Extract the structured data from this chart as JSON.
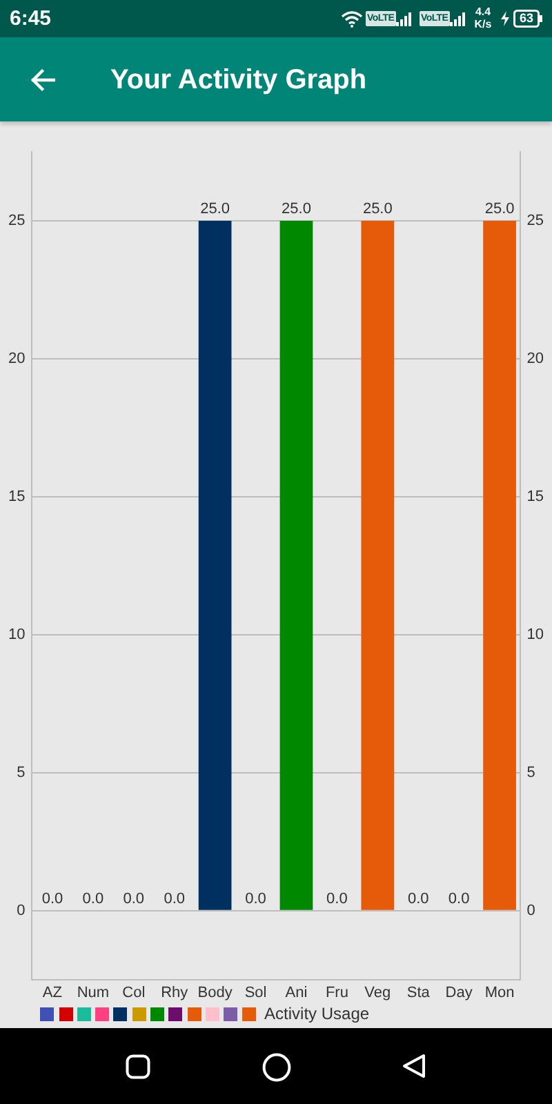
{
  "chart_data": {
    "type": "bar",
    "title": "Your Activity Graph",
    "annotations": [
      "6:45",
      "VoLTE",
      "VoLTE",
      "4.4 K/s",
      "63"
    ],
    "categories": [
      "AZ",
      "Num",
      "Col",
      "Rhy",
      "Body",
      "Sol",
      "Ani",
      "Fru",
      "Veg",
      "Sta",
      "Day",
      "Mon"
    ],
    "series": [
      {
        "name": "Activity Usage",
        "colors": [
          "#3f51b5",
          "#d50000",
          "#1abc9c",
          "#ff4081",
          "#00305f",
          "#cc9900",
          "#008800",
          "#6b0e6b",
          "#e55b0a",
          "#ffc0cb",
          "#7b5ea7",
          "#e55b0a"
        ],
        "values": [
          0,
          0,
          0,
          0,
          25,
          0,
          25,
          0,
          25,
          0,
          0,
          25
        ],
        "value_labels": [
          "0.0",
          "0.0",
          "0.0",
          "0.0",
          "25.0",
          "0.0",
          "25.0",
          "0.0",
          "25.0",
          "0.0",
          "0.0",
          "25.0"
        ]
      }
    ],
    "ylim": [
      -2.5,
      27.5
    ],
    "yticks": [
      0,
      5,
      10,
      15,
      20,
      25
    ],
    "y2lim": [
      -2.5,
      27.5
    ],
    "y2ticks": [
      0,
      5,
      10,
      15,
      20,
      25
    ],
    "grid": "y",
    "legend": "bottom left"
  }
}
